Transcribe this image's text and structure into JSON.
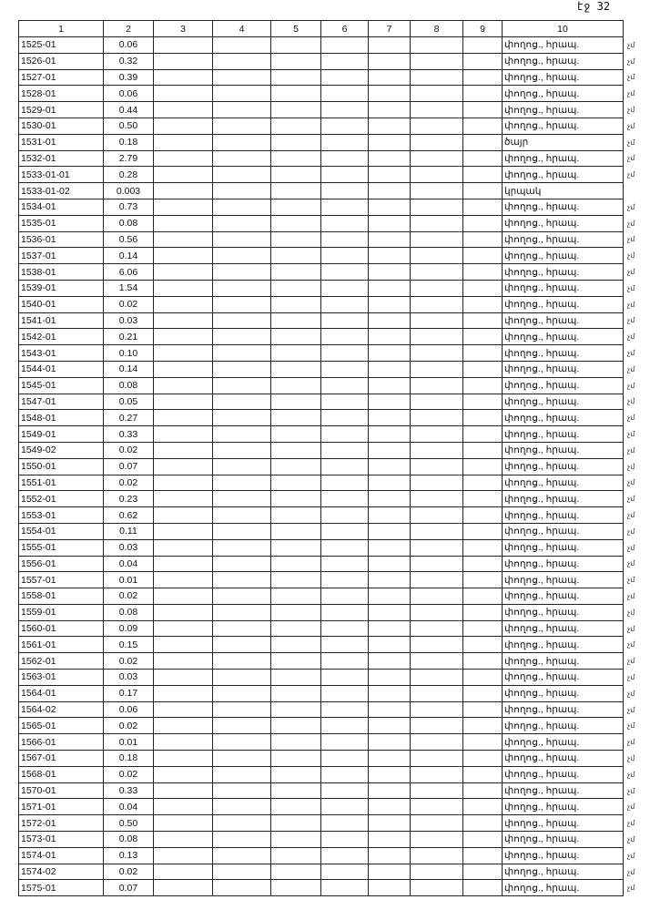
{
  "page_number": "էջ 32",
  "headers": [
    "1",
    "2",
    "3",
    "4",
    "5",
    "6",
    "7",
    "8",
    "9",
    "10"
  ],
  "rows": [
    {
      "code": "1525-01",
      "value": "0.06",
      "type": "փողոց., հրապ.",
      "mark": "չմ"
    },
    {
      "code": "1526-01",
      "value": "0.32",
      "type": "փողոց., հրապ.",
      "mark": "չմ"
    },
    {
      "code": "1527-01",
      "value": "0.39",
      "type": "փողոց., հրապ.",
      "mark": "չմ"
    },
    {
      "code": "1528-01",
      "value": "0.06",
      "type": "փողոց., հրապ.",
      "mark": "չմ"
    },
    {
      "code": "1529-01",
      "value": "0.44",
      "type": "փողոց., հրապ.",
      "mark": "չմ"
    },
    {
      "code": "1530-01",
      "value": "0.50",
      "type": "փողոց., հրապ.",
      "mark": "չմ"
    },
    {
      "code": "1531-01",
      "value": "0.18",
      "type": "ծայր",
      "mark": "չմ"
    },
    {
      "code": "1532-01",
      "value": "2.79",
      "type": "փողոց., հրապ.",
      "mark": "չմ"
    },
    {
      "code": "1533-01-01",
      "value": "0.28",
      "type": "փողոց., հրապ.",
      "mark": "չմ"
    },
    {
      "code": "1533-01-02",
      "value": "0.003",
      "type": "կրպակ",
      "mark": ""
    },
    {
      "code": "1534-01",
      "value": "0.73",
      "type": "փողոց., հրապ.",
      "mark": "չմ"
    },
    {
      "code": "1535-01",
      "value": "0.08",
      "type": "փողոց., հրապ.",
      "mark": "չմ"
    },
    {
      "code": "1536-01",
      "value": "0.56",
      "type": "փողոց., հրապ.",
      "mark": "չմ"
    },
    {
      "code": "1537-01",
      "value": "0.14",
      "type": "փողոց., հրապ.",
      "mark": "չմ"
    },
    {
      "code": "1538-01",
      "value": "6.06",
      "type": "փողոց., հրապ.",
      "mark": "չմ"
    },
    {
      "code": "1539-01",
      "value": "1.54",
      "type": "փողոց., հրապ.",
      "mark": "չմ"
    },
    {
      "code": "1540-01",
      "value": "0.02",
      "type": "փողոց., հրապ.",
      "mark": "չմ"
    },
    {
      "code": "1541-01",
      "value": "0.03",
      "type": "փողոց., հրապ.",
      "mark": "չմ"
    },
    {
      "code": "1542-01",
      "value": "0.21",
      "type": "փողոց., հրապ.",
      "mark": "չմ"
    },
    {
      "code": "1543-01",
      "value": "0.10",
      "type": "փողոց., հրապ.",
      "mark": "չմ"
    },
    {
      "code": "1544-01",
      "value": "0.14",
      "type": "փողոց., հրապ.",
      "mark": "չմ"
    },
    {
      "code": "1545-01",
      "value": "0.08",
      "type": "փողոց., հրապ.",
      "mark": "չմ"
    },
    {
      "code": "1547-01",
      "value": "0.05",
      "type": "փողոց., հրապ.",
      "mark": "չմ"
    },
    {
      "code": "1548-01",
      "value": "0.27",
      "type": "փողոց., հրապ.",
      "mark": "չմ"
    },
    {
      "code": "1549-01",
      "value": "0.33",
      "type": "փողոց., հրապ.",
      "mark": "չմ"
    },
    {
      "code": "1549-02",
      "value": "0.02",
      "type": "փողոց., հրապ.",
      "mark": "չմ"
    },
    {
      "code": "1550-01",
      "value": "0.07",
      "type": "փողոց., հրապ.",
      "mark": "չմ"
    },
    {
      "code": "1551-01",
      "value": "0.02",
      "type": "փողոց., հրապ.",
      "mark": "չմ"
    },
    {
      "code": "1552-01",
      "value": "0.23",
      "type": "փողոց., հրապ.",
      "mark": "չմ"
    },
    {
      "code": "1553-01",
      "value": "0.62",
      "type": "փողոց., հրապ.",
      "mark": "չմ"
    },
    {
      "code": "1554-01",
      "value": "0.11",
      "type": "փողոց., հրապ.",
      "mark": "չմ"
    },
    {
      "code": "1555-01",
      "value": "0.03",
      "type": "փողոց., հրապ.",
      "mark": "չմ"
    },
    {
      "code": "1556-01",
      "value": "0.04",
      "type": "փողոց., հրապ.",
      "mark": "չմ"
    },
    {
      "code": "1557-01",
      "value": "0.01",
      "type": "փողոց., հրապ.",
      "mark": "չմ"
    },
    {
      "code": "1558-01",
      "value": "0.02",
      "type": "փողոց., հրապ.",
      "mark": "չմ"
    },
    {
      "code": "1559-01",
      "value": "0.08",
      "type": "փողոց., հրապ.",
      "mark": "չմ"
    },
    {
      "code": "1560-01",
      "value": "0.09",
      "type": "փողոց., հրապ.",
      "mark": "չմ"
    },
    {
      "code": "1561-01",
      "value": "0.15",
      "type": "փողոց., հրապ.",
      "mark": "չմ"
    },
    {
      "code": "1562-01",
      "value": "0.02",
      "type": "փողոց., հրապ.",
      "mark": "չմ"
    },
    {
      "code": "1563-01",
      "value": "0.03",
      "type": "փողոց., հրապ.",
      "mark": "չմ"
    },
    {
      "code": "1564-01",
      "value": "0.17",
      "type": "փողոց., հրապ.",
      "mark": "չմ"
    },
    {
      "code": "1564-02",
      "value": "0.06",
      "type": "փողոց., հրապ.",
      "mark": "չմ"
    },
    {
      "code": "1565-01",
      "value": "0.02",
      "type": "փողոց., հրապ.",
      "mark": "չմ"
    },
    {
      "code": "1566-01",
      "value": "0.01",
      "type": "փողոց., հրապ.",
      "mark": "չմ"
    },
    {
      "code": "1567-01",
      "value": "0.18",
      "type": "փողոց., հրապ.",
      "mark": "չմ"
    },
    {
      "code": "1568-01",
      "value": "0.02",
      "type": "փողոց., հրապ.",
      "mark": "չմ"
    },
    {
      "code": "1570-01",
      "value": "0.33",
      "type": "փողոց., հրապ.",
      "mark": "չմ"
    },
    {
      "code": "1571-01",
      "value": "0.04",
      "type": "փողոց., հրապ.",
      "mark": "չմ"
    },
    {
      "code": "1572-01",
      "value": "0.50",
      "type": "փողոց., հրապ.",
      "mark": "չմ"
    },
    {
      "code": "1573-01",
      "value": "0.08",
      "type": "փողոց., հրապ.",
      "mark": "չմ"
    },
    {
      "code": "1574-01",
      "value": "0.13",
      "type": "փողոց., հրապ.",
      "mark": "չմ"
    },
    {
      "code": "1574-02",
      "value": "0.02",
      "type": "փողոց., հրապ.",
      "mark": "չմ"
    },
    {
      "code": "1575-01",
      "value": "0.07",
      "type": "փողոց., հրապ.",
      "mark": "չմ"
    }
  ]
}
